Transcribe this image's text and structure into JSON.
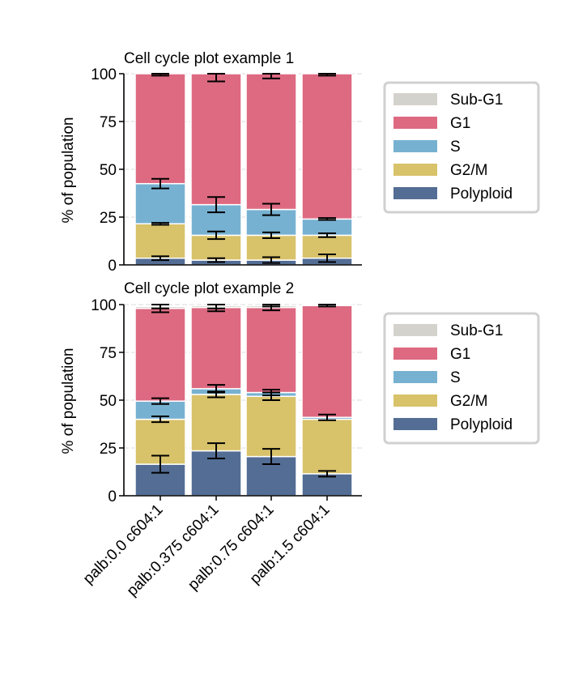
{
  "figure": {
    "colors": {
      "Sub-G1": "#d4d2cc",
      "G1": "#de6a82",
      "S": "#77b1d1",
      "G2/M": "#d8c26a",
      "Polyploid": "#536d94",
      "grid": "#e6e6e6",
      "legend_border": "#d0d0d0"
    }
  },
  "chart_data": [
    {
      "type": "bar",
      "stacked": true,
      "title": "Cell cycle plot example 1",
      "ylabel": "% of population",
      "xlabel": "",
      "ylim": [
        0,
        100
      ],
      "yticks": [
        "0",
        "25",
        "50",
        "75",
        "100"
      ],
      "grid": "horizontal dashed",
      "legend_placement": "right",
      "categories": [
        "palb:0.0 c604:1",
        "palb:0.375 c604:1",
        "palb:0.75 c604:1",
        "palb:1.5 c604:1"
      ],
      "series": [
        {
          "name": "Polyploid",
          "values": [
            3.5,
            2.5,
            2.5,
            3.5
          ],
          "err": [
            1,
            1,
            1.5,
            2
          ]
        },
        {
          "name": "G2/M",
          "values": [
            18,
            13,
            13,
            12
          ],
          "err": [
            0.5,
            2,
            1.5,
            1
          ]
        },
        {
          "name": "S",
          "values": [
            21,
            16,
            13.5,
            8.5
          ],
          "err": [
            2.5,
            4,
            3,
            0.5
          ]
        },
        {
          "name": "G1",
          "values": [
            57.5,
            68.5,
            71,
            76
          ],
          "err": [
            1,
            4,
            2.5,
            1
          ]
        },
        {
          "name": "Sub-G1",
          "values": [
            0,
            0,
            0,
            0
          ],
          "err": [
            0,
            0,
            0,
            0
          ]
        }
      ]
    },
    {
      "type": "bar",
      "stacked": true,
      "title": "Cell cycle plot example 2",
      "ylabel": "% of population",
      "xlabel": "",
      "ylim": [
        0,
        100
      ],
      "yticks": [
        "0",
        "25",
        "50",
        "75",
        "100"
      ],
      "grid": "horizontal dashed",
      "legend_placement": "right",
      "categories": [
        "palb:0.0 c604:1",
        "palb:0.375 c604:1",
        "palb:0.75 c604:1",
        "palb:1.5 c604:1"
      ],
      "series": [
        {
          "name": "Polyploid",
          "values": [
            16.5,
            23.5,
            20.5,
            11.5
          ],
          "err": [
            4.5,
            4,
            4,
            1.5
          ]
        },
        {
          "name": "G2/M",
          "values": [
            23.5,
            29.5,
            31.5,
            28.5
          ],
          "err": [
            1.5,
            1.5,
            2,
            0
          ]
        },
        {
          "name": "S",
          "values": [
            9.5,
            3,
            2,
            1
          ],
          "err": [
            1.5,
            2,
            1.5,
            1.5
          ]
        },
        {
          "name": "G1",
          "values": [
            48.5,
            42.5,
            44.5,
            58.5
          ],
          "err": [
            2,
            2,
            1.5,
            0.5
          ]
        },
        {
          "name": "Sub-G1",
          "values": [
            1,
            1,
            1,
            0.5
          ],
          "err": [
            1,
            1.5,
            0.5,
            0
          ]
        }
      ]
    }
  ]
}
